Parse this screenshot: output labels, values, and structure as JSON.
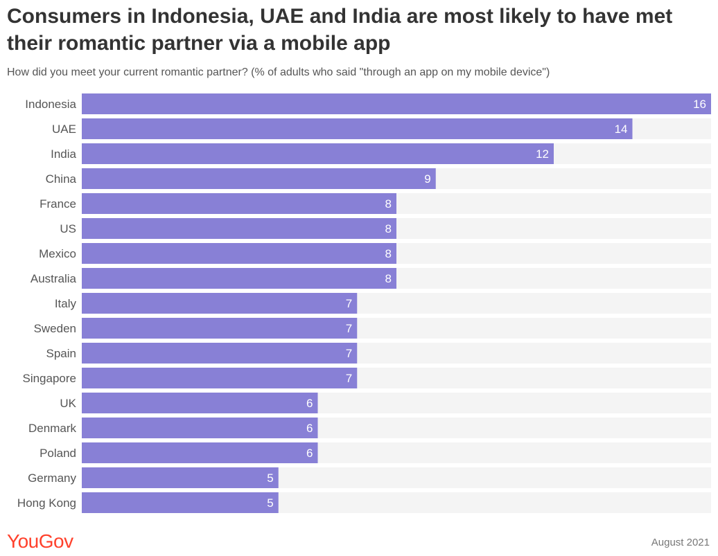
{
  "chart_data": {
    "type": "bar",
    "orientation": "horizontal",
    "title": "Consumers in Indonesia, UAE and India are most likely to have met their romantic partner via a mobile app",
    "subtitle": "How did you meet your current romantic partner? (% of adults who said \"through an app on my mobile device\")",
    "categories": [
      "Indonesia",
      "UAE",
      "India",
      "China",
      "France",
      "US",
      "Mexico",
      "Australia",
      "Italy",
      "Sweden",
      "Spain",
      "Singapore",
      "UK",
      "Denmark",
      "Poland",
      "Germany",
      "Hong Kong"
    ],
    "values": [
      16,
      14,
      12,
      9,
      8,
      8,
      8,
      8,
      7,
      7,
      7,
      7,
      6,
      6,
      6,
      5,
      5
    ],
    "xlim": [
      0,
      16
    ],
    "bar_color": "#8880d6",
    "track_color": "#f4f4f4",
    "data_labels": true,
    "grid": false,
    "legend": "none"
  },
  "footer": {
    "brand": "YouGov",
    "brand_color": "#ff412c",
    "date": "August 2021"
  }
}
